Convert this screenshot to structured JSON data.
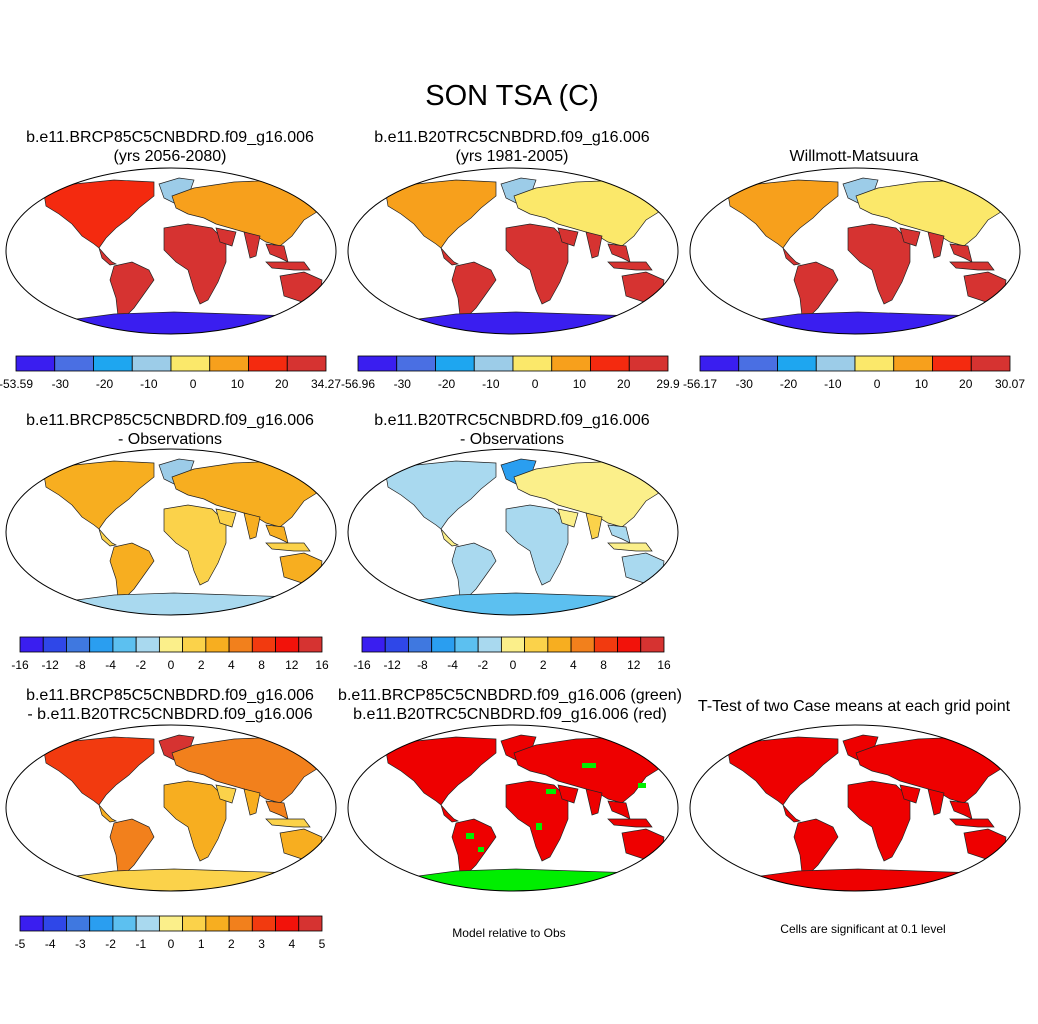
{
  "page": {
    "title": "SON TSA (C)"
  },
  "panels": [
    {
      "id": "p1",
      "title1": "b.e11.BRCP85C5CNBDRD.f09_g16.006",
      "title2": "(yrs 2056-2080)",
      "scheme": "abs_warm"
    },
    {
      "id": "p2",
      "title1": "b.e11.B20TRC5CNBDRD.f09_g16.006",
      "title2": "(yrs 1981-2005)",
      "scheme": "abs_cool"
    },
    {
      "id": "p3",
      "title1": "Willmott-Matsuura",
      "title2": "",
      "scheme": "abs_obs"
    },
    {
      "id": "p4",
      "title1": "b.e11.BRCP85C5CNBDRD.f09_g16.006",
      "title2": "- Observations",
      "scheme": "diff_warm"
    },
    {
      "id": "p5",
      "title1": "b.e11.B20TRC5CNBDRD.f09_g16.006",
      "title2": "- Observations",
      "scheme": "diff_cool"
    },
    {
      "id": "p6",
      "title1": "b.e11.BRCP85C5CNBDRD.f09_g16.006",
      "title2": "- b.e11.B20TRC5CNBDRD.f09_g16.006",
      "scheme": "casediff"
    },
    {
      "id": "p7",
      "title1": "b.e11.BRCP85C5CNBDRD.f09_g16.006 (green)",
      "title2": "b.e11.B20TRC5CNBDRD.f09_g16.006 (red)",
      "scheme": "rg"
    },
    {
      "id": "p8",
      "title1": "T-Test of two Case means at each grid point",
      "title2": "",
      "scheme": "ttest"
    }
  ],
  "colorbars": {
    "cb1": {
      "labels": [
        "-53.59",
        "-30",
        "-20",
        "-10",
        "0",
        "10",
        "20",
        "34.27"
      ],
      "colors": [
        "#3a1ef0",
        "#4a6fe3",
        "#1ea6f0",
        "#9ccce8",
        "#fbe86a",
        "#f7a01c",
        "#f42a0f",
        "#d63331"
      ]
    },
    "cb2": {
      "labels": [
        "-56.96",
        "-30",
        "-20",
        "-10",
        "0",
        "10",
        "20",
        "29.9"
      ],
      "colors": [
        "#3a1ef0",
        "#4a6fe3",
        "#1ea6f0",
        "#9ccce8",
        "#fbe86a",
        "#f7a01c",
        "#f42a0f",
        "#d63331"
      ]
    },
    "cb3": {
      "labels": [
        "-56.17",
        "-30",
        "-20",
        "-10",
        "0",
        "10",
        "20",
        "30.07"
      ],
      "colors": [
        "#3a1ef0",
        "#4a6fe3",
        "#1ea6f0",
        "#9ccce8",
        "#fbe86a",
        "#f7a01c",
        "#f42a0f",
        "#d63331"
      ]
    },
    "cb4": {
      "labels": [
        "-16",
        "-12",
        "-8",
        "-4",
        "-2",
        "0",
        "2",
        "4",
        "8",
        "12",
        "16"
      ],
      "colors": [
        "#3a1ef0",
        "#2f47e8",
        "#3f78e0",
        "#2a9ef0",
        "#5cc0f0",
        "#a9d9ef",
        "#fbef8a",
        "#fbd24a",
        "#f7ae20",
        "#f2801c",
        "#f23a0f",
        "#f2120a",
        "#d63331"
      ]
    },
    "cb5": {
      "labels": [
        "-16",
        "-12",
        "-8",
        "-4",
        "-2",
        "0",
        "2",
        "4",
        "8",
        "12",
        "16"
      ],
      "colors": [
        "#3a1ef0",
        "#2f47e8",
        "#3f78e0",
        "#2a9ef0",
        "#5cc0f0",
        "#a9d9ef",
        "#fbef8a",
        "#fbd24a",
        "#f7ae20",
        "#f2801c",
        "#f23a0f",
        "#f2120a",
        "#d63331"
      ]
    },
    "cb6": {
      "labels": [
        "-5",
        "-4",
        "-3",
        "-2",
        "-1",
        "0",
        "1",
        "2",
        "3",
        "4",
        "5"
      ],
      "colors": [
        "#3a1ef0",
        "#2f47e8",
        "#3f78e0",
        "#2a9ef0",
        "#5cc0f0",
        "#a9d9ef",
        "#fbef8a",
        "#fbd24a",
        "#f7ae20",
        "#f2801c",
        "#f23a0f",
        "#f2120a",
        "#d63331"
      ]
    }
  },
  "notes": {
    "rg": "Model relative to Obs",
    "ttest": "Cells are significant at 0.1 level"
  }
}
